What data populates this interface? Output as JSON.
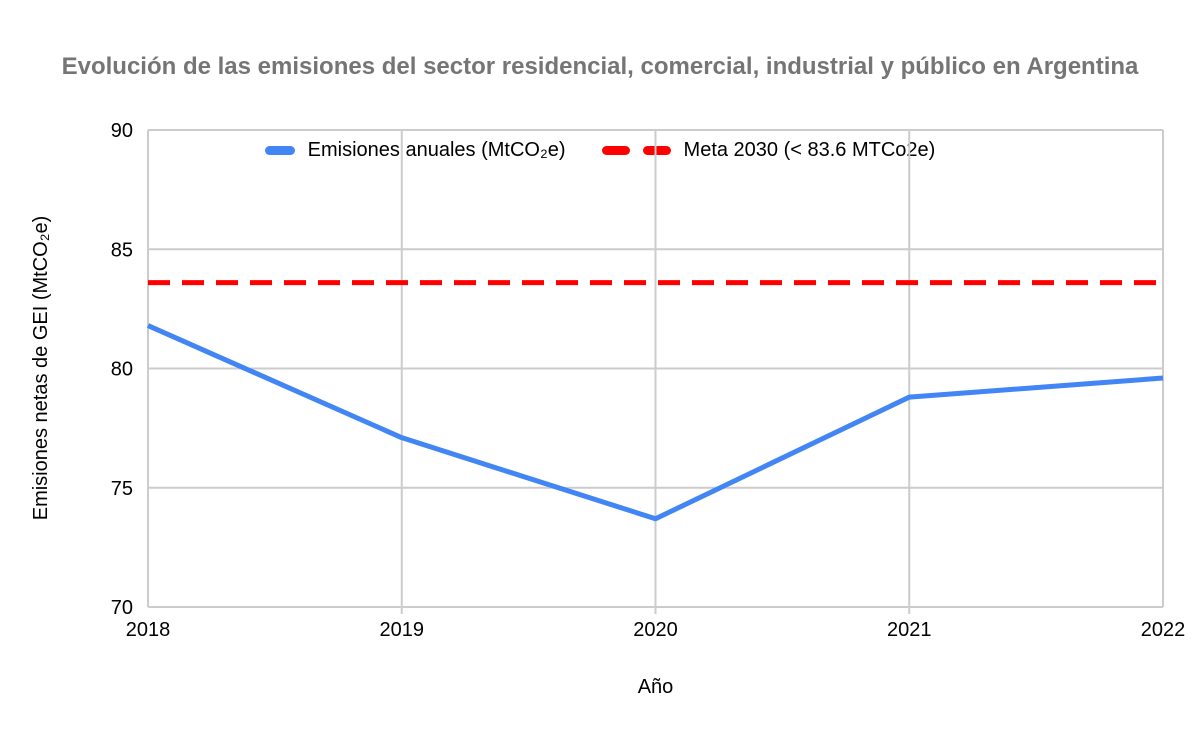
{
  "chart_data": {
    "type": "line",
    "title": "Evolución de las emisiones del sector residencial, comercial, industrial y público en Argentina",
    "xlabel": "Año",
    "ylabel": "Emisiones netas de GEI (MtCO₂e)",
    "x": [
      2018,
      2019,
      2020,
      2021,
      2022
    ],
    "xticks": [
      "2018",
      "2019",
      "2020",
      "2021",
      "2022"
    ],
    "yticks": [
      70,
      75,
      80,
      85,
      90
    ],
    "ylim": [
      70,
      90
    ],
    "grid": true,
    "legend_position": "top-center",
    "series": [
      {
        "name": "Emisiones anuales (MtCO₂e)",
        "values": [
          81.8,
          77.1,
          73.7,
          78.8,
          79.6
        ],
        "color": "#4285F4",
        "line_style": "solid"
      },
      {
        "name": "Meta 2030 (< 83.6 MTCo2e)",
        "values": [
          83.6,
          83.6,
          83.6,
          83.6,
          83.6
        ],
        "color": "#FF0000",
        "line_style": "dashed"
      }
    ],
    "target_2030": 83.6,
    "colors": {
      "grid": "#cccccc",
      "axis_text": "#000000",
      "title": "#757575",
      "background": "#ffffff"
    }
  }
}
